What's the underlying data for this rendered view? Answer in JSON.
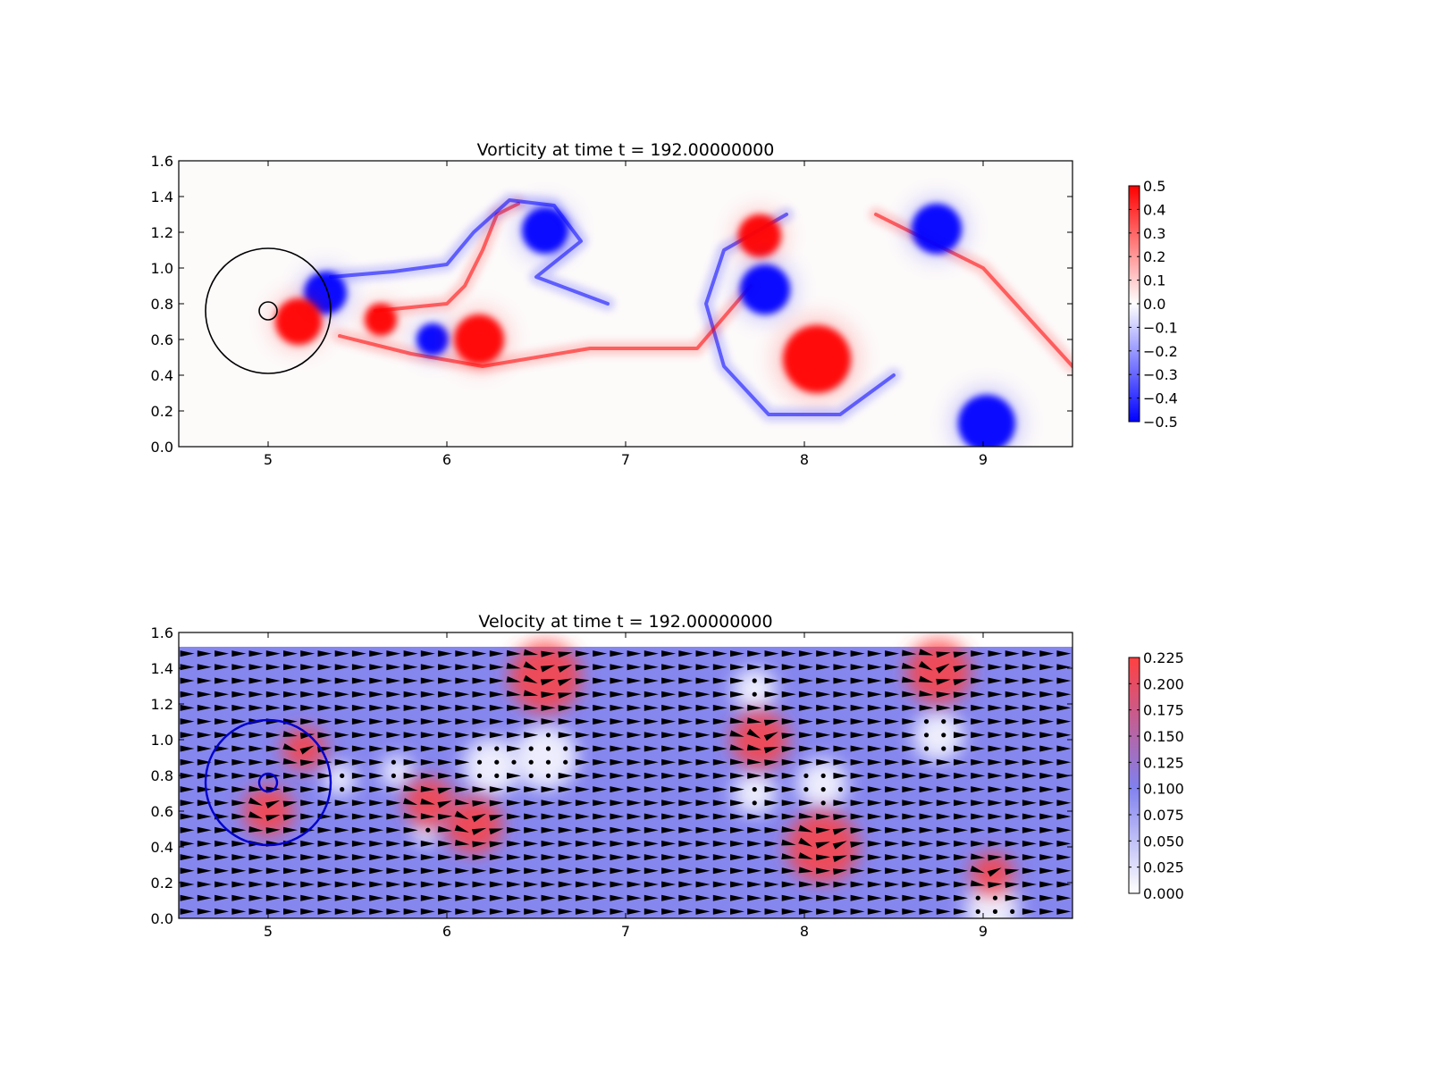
{
  "chart_data": [
    {
      "type": "heatmap",
      "title": "Vorticity at time t =   192.00000000",
      "xlim": [
        4.5,
        9.5
      ],
      "ylim": [
        0.0,
        1.6
      ],
      "x_ticks": [
        "5",
        "6",
        "7",
        "8",
        "9"
      ],
      "y_ticks": [
        "0.0",
        "0.2",
        "0.4",
        "0.6",
        "0.8",
        "1.0",
        "1.2",
        "1.4",
        "1.6"
      ],
      "colorbar": {
        "min": -0.5,
        "max": 0.5,
        "ticks": [
          "0.5",
          "0.4",
          "0.3",
          "0.2",
          "0.1",
          "0.0",
          "−0.1",
          "−0.2",
          "−0.3",
          "−0.4",
          "−0.5"
        ],
        "low_color": "#0000ff",
        "mid_color": "#ffffff",
        "high_color": "#ff0000"
      },
      "vortices": [
        {
          "x": 5.32,
          "y": 0.86,
          "r": 0.12,
          "sign": -1
        },
        {
          "x": 5.17,
          "y": 0.7,
          "r": 0.13,
          "sign": 1
        },
        {
          "x": 5.63,
          "y": 0.71,
          "r": 0.09,
          "sign": 1
        },
        {
          "x": 5.92,
          "y": 0.6,
          "r": 0.09,
          "sign": -1
        },
        {
          "x": 6.18,
          "y": 0.6,
          "r": 0.14,
          "sign": 1
        },
        {
          "x": 6.55,
          "y": 1.21,
          "r": 0.13,
          "sign": -1
        },
        {
          "x": 7.75,
          "y": 1.18,
          "r": 0.12,
          "sign": 1
        },
        {
          "x": 7.78,
          "y": 0.88,
          "r": 0.14,
          "sign": -1
        },
        {
          "x": 8.07,
          "y": 0.49,
          "r": 0.19,
          "sign": 1
        },
        {
          "x": 8.74,
          "y": 1.22,
          "r": 0.14,
          "sign": -1
        },
        {
          "x": 9.02,
          "y": 0.13,
          "r": 0.16,
          "sign": -1
        }
      ],
      "filaments": [
        {
          "sign": 1,
          "points": [
            [
              5.6,
              0.76
            ],
            [
              5.8,
              0.78
            ],
            [
              6.0,
              0.8
            ],
            [
              6.1,
              0.9
            ],
            [
              6.2,
              1.1
            ],
            [
              6.28,
              1.3
            ],
            [
              6.4,
              1.36
            ]
          ]
        },
        {
          "sign": -1,
          "points": [
            [
              5.35,
              0.95
            ],
            [
              5.7,
              0.98
            ],
            [
              6.0,
              1.02
            ],
            [
              6.15,
              1.2
            ],
            [
              6.35,
              1.38
            ],
            [
              6.6,
              1.35
            ],
            [
              6.75,
              1.15
            ],
            [
              6.5,
              0.95
            ],
            [
              6.9,
              0.8
            ]
          ]
        },
        {
          "sign": -1,
          "points": [
            [
              7.9,
              1.3
            ],
            [
              7.55,
              1.1
            ],
            [
              7.45,
              0.8
            ],
            [
              7.55,
              0.45
            ],
            [
              7.8,
              0.18
            ],
            [
              8.2,
              0.18
            ],
            [
              8.5,
              0.4
            ]
          ]
        },
        {
          "sign": 1,
          "points": [
            [
              5.4,
              0.62
            ],
            [
              5.8,
              0.52
            ],
            [
              6.2,
              0.45
            ],
            [
              6.8,
              0.55
            ],
            [
              7.4,
              0.55
            ],
            [
              7.7,
              0.9
            ]
          ]
        },
        {
          "sign": 1,
          "points": [
            [
              8.4,
              1.3
            ],
            [
              9.0,
              1.0
            ],
            [
              9.5,
              0.45
            ]
          ]
        }
      ],
      "circles": [
        {
          "x": 5.0,
          "y": 0.76,
          "r": 0.35,
          "color": "#000000"
        },
        {
          "x": 5.0,
          "y": 0.76,
          "r": 0.05,
          "color": "#000000"
        }
      ]
    },
    {
      "type": "heatmap",
      "title": "Velocity at time t =   192.00000000",
      "xlim": [
        4.5,
        9.5
      ],
      "ylim": [
        0.0,
        1.6
      ],
      "x_ticks": [
        "5",
        "6",
        "7",
        "8",
        "9"
      ],
      "y_ticks": [
        "0.0",
        "0.2",
        "0.4",
        "0.6",
        "0.8",
        "1.0",
        "1.2",
        "1.4",
        "1.6"
      ],
      "field_ymax": 1.52,
      "background_speed": 0.1,
      "colorbar": {
        "min": 0.0,
        "max": 0.225,
        "ticks": [
          "0.225",
          "0.200",
          "0.175",
          "0.150",
          "0.125",
          "0.100",
          "0.075",
          "0.050",
          "0.025",
          "0.000"
        ],
        "low_color": "#ffffff",
        "mid_color": "#8080ee",
        "high_color": "#ff4040"
      },
      "fast_regions": [
        {
          "x": 6.55,
          "y": 1.35,
          "r": 0.2
        },
        {
          "x": 7.75,
          "y": 1.0,
          "r": 0.16
        },
        {
          "x": 8.75,
          "y": 1.38,
          "r": 0.18
        },
        {
          "x": 8.1,
          "y": 0.4,
          "r": 0.2
        },
        {
          "x": 9.05,
          "y": 0.25,
          "r": 0.12
        },
        {
          "x": 6.15,
          "y": 0.52,
          "r": 0.16
        },
        {
          "x": 5.9,
          "y": 0.65,
          "r": 0.14
        },
        {
          "x": 5.0,
          "y": 0.6,
          "r": 0.14
        },
        {
          "x": 5.2,
          "y": 0.95,
          "r": 0.12
        }
      ],
      "slow_regions": [
        {
          "x": 6.25,
          "y": 0.85,
          "r": 0.16
        },
        {
          "x": 6.55,
          "y": 0.9,
          "r": 0.18
        },
        {
          "x": 7.72,
          "y": 1.28,
          "r": 0.12
        },
        {
          "x": 7.72,
          "y": 0.7,
          "r": 0.12
        },
        {
          "x": 8.1,
          "y": 0.75,
          "r": 0.14
        },
        {
          "x": 8.75,
          "y": 1.02,
          "r": 0.14
        },
        {
          "x": 9.05,
          "y": 0.05,
          "r": 0.15
        },
        {
          "x": 5.72,
          "y": 0.82,
          "r": 0.09
        },
        {
          "x": 5.4,
          "y": 0.78,
          "r": 0.09
        },
        {
          "x": 5.88,
          "y": 0.48,
          "r": 0.07
        }
      ],
      "circles": [
        {
          "x": 5.0,
          "y": 0.76,
          "r": 0.35,
          "color": "#0000cc"
        },
        {
          "x": 5.0,
          "y": 0.76,
          "r": 0.05,
          "color": "#0000cc"
        }
      ]
    }
  ]
}
